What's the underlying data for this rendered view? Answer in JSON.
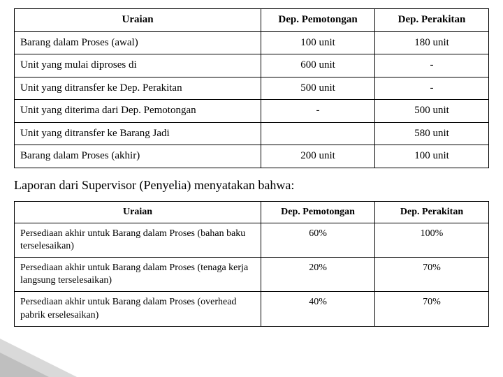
{
  "table1": {
    "headers": {
      "uraian": "Uraian",
      "pemotongan": "Dep. Pemotongan",
      "perakitan": "Dep. Perakitan"
    },
    "rows": [
      {
        "uraian": "Barang dalam Proses (awal)",
        "pemotongan": "100 unit",
        "perakitan": "180 unit"
      },
      {
        "uraian": "Unit yang mulai diproses di",
        "pemotongan": "600 unit",
        "perakitan": "-"
      },
      {
        "uraian": "Unit yang ditransfer ke Dep. Perakitan",
        "pemotongan": "500 unit",
        "perakitan": "-"
      },
      {
        "uraian": "Unit yang diterima dari Dep. Pemotongan",
        "pemotongan": "-",
        "perakitan": "500 unit"
      },
      {
        "uraian": "Unit yang ditransfer ke Barang Jadi",
        "pemotongan": "",
        "perakitan": "580 unit"
      },
      {
        "uraian": "Barang dalam Proses (akhir)",
        "pemotongan": "200 unit",
        "perakitan": "100 unit"
      }
    ]
  },
  "intertext": "Laporan dari Supervisor (Penyelia) menyatakan bahwa:",
  "table2": {
    "headers": {
      "uraian": "Uraian",
      "pemotongan": "Dep. Pemotongan",
      "perakitan": "Dep. Perakitan"
    },
    "rows": [
      {
        "uraian": "Persediaan akhir untuk Barang dalam Proses (bahan baku terselesaikan)",
        "pemotongan": "60%",
        "perakitan": "100%"
      },
      {
        "uraian": "Persediaan akhir untuk Barang dalam Proses (tenaga kerja langsung terselesaikan)",
        "pemotongan": "20%",
        "perakitan": "70%"
      },
      {
        "uraian": "Persediaan akhir untuk Barang dalam Proses (overhead pabrik erselesaikan)",
        "pemotongan": "40%",
        "perakitan": "70%"
      }
    ]
  }
}
